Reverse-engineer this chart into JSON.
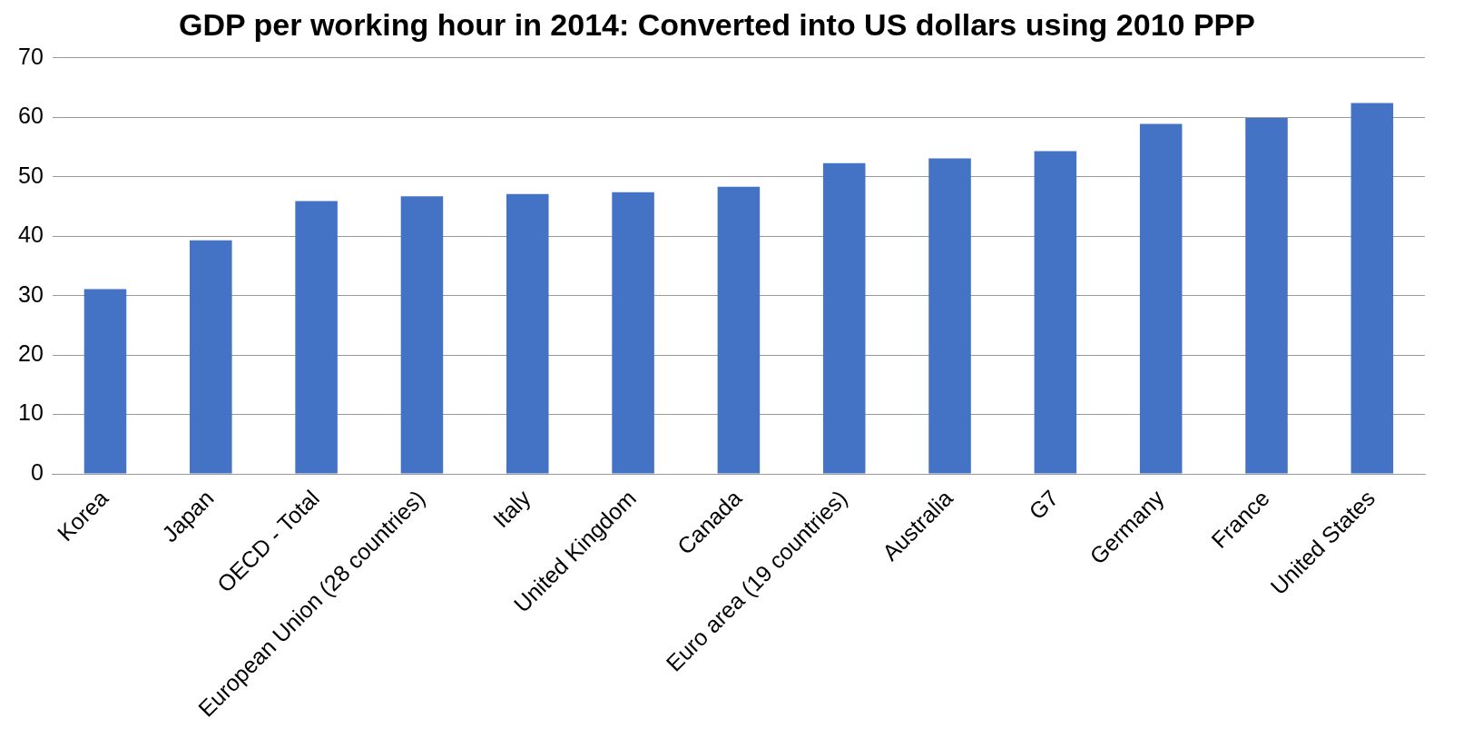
{
  "chart_data": {
    "type": "bar",
    "title": "GDP per working hour in 2014: Converted into US dollars using 2010 PPP",
    "categories": [
      "Korea",
      "Japan",
      "OECD - Total",
      "European Union (28 countries)",
      "Italy",
      "United Kingdom",
      "Canada",
      "Euro area (19 countries)",
      "Australia",
      "G7",
      "Germany",
      "France",
      "United States"
    ],
    "values": [
      31.1,
      39.3,
      45.9,
      46.7,
      47.1,
      47.4,
      48.3,
      52.3,
      53.1,
      54.3,
      58.9,
      59.9,
      62.4
    ],
    "color": "#4472c4",
    "ylim": [
      0,
      70
    ],
    "yticks": [
      0,
      10,
      20,
      30,
      40,
      50,
      60,
      70
    ],
    "grid": "y",
    "legend": false
  }
}
